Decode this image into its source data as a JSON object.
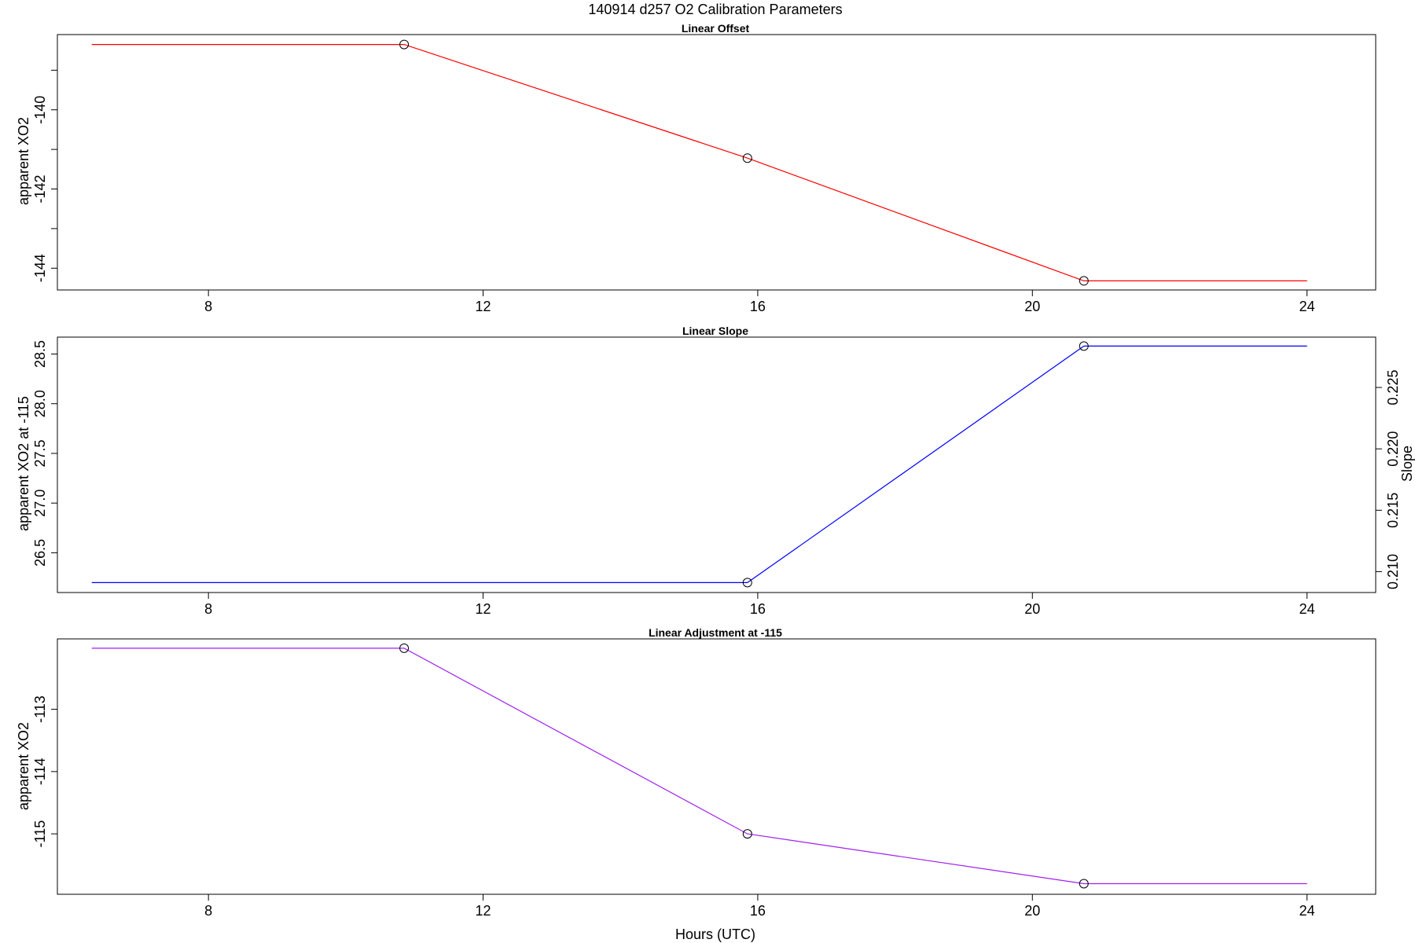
{
  "figure": {
    "title": "140914   d257   O2 Calibration Parameters",
    "xlabel": "Hours (UTC)"
  },
  "chart_data": [
    {
      "type": "line",
      "title": "Linear Offset",
      "xlabel": "",
      "ylabel": "apparent XO2",
      "xlim": [
        5.8,
        25.0
      ],
      "ylim": [
        -144.55,
        -138.1
      ],
      "xticks": [
        8,
        12,
        16,
        20,
        24
      ],
      "yticks": [
        -144,
        -143,
        -142,
        -141,
        -140,
        -139
      ],
      "yticklabels": [
        "-144",
        "",
        "-142",
        "",
        "-140",
        ""
      ],
      "series": [
        {
          "color": "#ff0000",
          "x": [
            6.3,
            10.85,
            15.85,
            20.75,
            24.0
          ],
          "y": [
            -138.35,
            -138.35,
            -141.22,
            -144.32,
            -144.32
          ],
          "markers": [
            false,
            true,
            true,
            true,
            false
          ]
        }
      ]
    },
    {
      "type": "line",
      "title": "Linear Slope",
      "xlabel": "",
      "ylabel": "apparent XO2 at -115",
      "ylabel_right": "Slope",
      "xlim": [
        5.8,
        25.0
      ],
      "ylim": [
        26.1,
        28.67
      ],
      "y2lim": [
        0.2083,
        0.2291
      ],
      "xticks": [
        8,
        12,
        16,
        20,
        24
      ],
      "yticks": [
        26.5,
        27.0,
        27.5,
        28.0,
        28.5
      ],
      "yticklabels": [
        "26.5",
        "27.0",
        "27.5",
        "28.0",
        "28.5"
      ],
      "y2ticks": [
        0.21,
        0.215,
        0.22,
        0.225
      ],
      "y2ticklabels": [
        "0.210",
        "0.215",
        "0.220",
        "0.225"
      ],
      "series": [
        {
          "color": "#0000ff",
          "x": [
            6.3,
            10.85,
            15.85,
            20.75,
            24.0
          ],
          "y": [
            26.2,
            26.2,
            26.2,
            28.58,
            28.58
          ],
          "markers": [
            false,
            false,
            true,
            true,
            false
          ]
        }
      ]
    },
    {
      "type": "line",
      "title": "Linear Adjustment at -115",
      "xlabel": "Hours (UTC)",
      "ylabel": "apparent XO2",
      "xlim": [
        5.8,
        25.0
      ],
      "ylim": [
        -115.97,
        -111.87
      ],
      "xticks": [
        8,
        12,
        16,
        20,
        24
      ],
      "yticks": [
        -115,
        -114,
        -113
      ],
      "yticklabels": [
        "-115",
        "-114",
        "-113"
      ],
      "series": [
        {
          "color": "#a020f0",
          "x": [
            6.3,
            10.85,
            15.85,
            20.75,
            24.0
          ],
          "y": [
            -112.02,
            -112.02,
            -115.0,
            -115.8,
            -115.8
          ],
          "markers": [
            false,
            true,
            true,
            true,
            false
          ]
        }
      ]
    }
  ]
}
